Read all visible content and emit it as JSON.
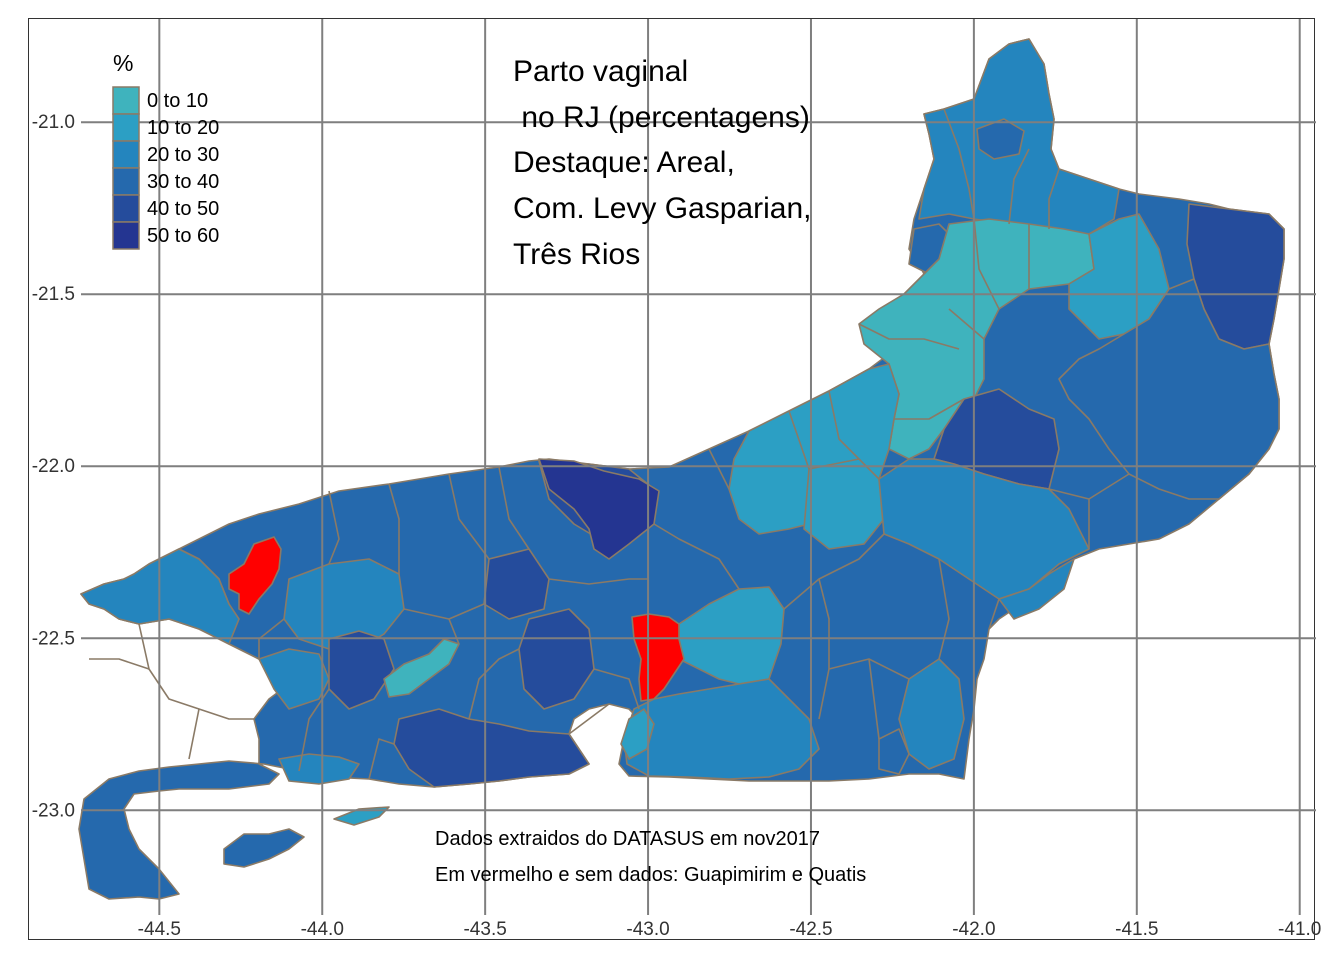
{
  "title_lines": [
    "Parto vaginal",
    " no RJ (percentagens)",
    "Destaque: Areal,",
    "Com. Levy Gasparian,",
    "Três Rios"
  ],
  "caption_lines": [
    "Dados extraidos do DATASUS em nov2017",
    "Em vermelho e sem dados: Guapimirim e Quatis"
  ],
  "legend": {
    "title": "%",
    "items": [
      {
        "label": "0 to 10",
        "color": "#3fb3bd"
      },
      {
        "label": "10 to 20",
        "color": "#2c9fc4"
      },
      {
        "label": "20 to 30",
        "color": "#2485be"
      },
      {
        "label": "30 to 40",
        "color": "#2569ad"
      },
      {
        "label": "40 to 50",
        "color": "#254c9c"
      },
      {
        "label": "50 to 60",
        "color": "#243591"
      }
    ]
  },
  "axes": {
    "x_ticks": [
      "-44.5",
      "-44.0",
      "-43.5",
      "-43.0",
      "-42.5",
      "-42.0",
      "-41.5",
      "-41.0"
    ],
    "y_ticks": [
      "-21.0",
      "-21.5",
      "-22.0",
      "-22.5",
      "-23.0"
    ],
    "x_range": [
      -44.9,
      -40.95
    ],
    "y_range": [
      -23.38,
      -20.7
    ]
  },
  "highlight_color": "#ff0000",
  "chart_data": {
    "type": "choropleth",
    "title": "Parto vaginal no RJ (percentagens) Destaque: Areal, Com. Levy Gasparian, Três Rios",
    "legend_title": "%",
    "legend_placement": "top-left",
    "grid": true,
    "classes": [
      "0 to 10",
      "10 to 20",
      "20 to 30",
      "30 to 40",
      "40 to 50",
      "50 to 60"
    ],
    "no_data": [
      "Guapimirim",
      "Quatis"
    ]
  }
}
